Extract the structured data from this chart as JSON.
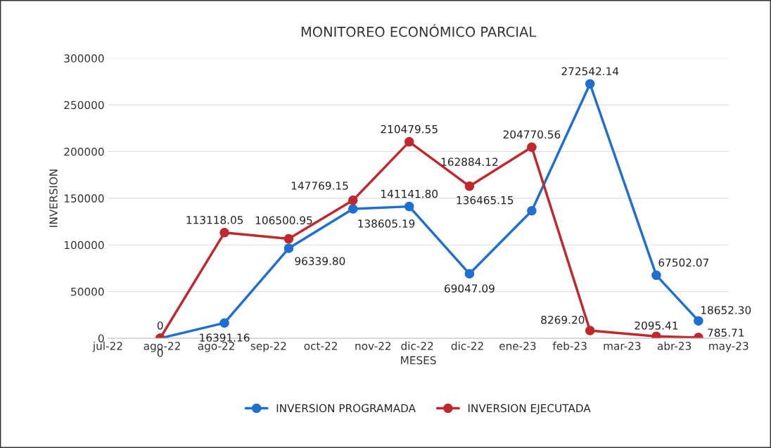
{
  "chart_data": {
    "type": "line",
    "title": "MONITOREO ECONÓMICO PARCIAL",
    "xlabel": "MESES",
    "ylabel": "INVERSION",
    "x": [
      "2022-07-31",
      "2022-09-01",
      "2022-10-03",
      "2022-11-04",
      "2022-12-02",
      "2023-01-01",
      "2023-02-01",
      "2023-03-02",
      "2023-04-04",
      "2023-04-25"
    ],
    "series": [
      {
        "name": "INVERSION PROGRAMADA",
        "color": "#1f6fd1",
        "values": [
          0,
          16391.16,
          96339.8,
          138605.19,
          141141.8,
          69047.09,
          136465.15,
          272542.14,
          67502.07,
          18652.3
        ],
        "value_labels": [
          "0",
          "16391.16",
          "96339.80",
          "138605.19",
          "141141.80",
          "69047.09",
          "136465.15",
          "272542.14",
          "67502.07",
          "18652.30"
        ]
      },
      {
        "name": "INVERSION EJECUTADA",
        "color": "#c0282d",
        "values": [
          0,
          113118.05,
          106500.95,
          147769.15,
          210479.55,
          162884.12,
          204770.56,
          8269.2,
          2095.41,
          785.71
        ],
        "value_labels": [
          "0",
          "113118.05",
          "106500.95",
          "147769.15",
          "210479.55",
          "162884.12",
          "204770.56",
          "8269.20",
          "2095.41",
          "785.71"
        ]
      }
    ],
    "xlim": [
      "2022-07-05",
      "2023-05-10"
    ],
    "xticks": [
      {
        "value": "2022-07-05",
        "label": "jul-22"
      },
      {
        "value": "2022-08-01",
        "label": "ago-22"
      },
      {
        "value": "2022-08-28",
        "label": "ago-22"
      },
      {
        "value": "2022-09-23",
        "label": "sep-22"
      },
      {
        "value": "2022-10-19",
        "label": "oct-22"
      },
      {
        "value": "2022-11-14",
        "label": "nov-22"
      },
      {
        "value": "2022-12-06",
        "label": "dic-22"
      },
      {
        "value": "2022-12-31",
        "label": "dic-22"
      },
      {
        "value": "2023-01-25",
        "label": "ene-23"
      },
      {
        "value": "2023-02-20",
        "label": "feb-23"
      },
      {
        "value": "2023-03-18",
        "label": "mar-23"
      },
      {
        "value": "2023-04-13",
        "label": "abr-23"
      },
      {
        "value": "2023-05-10",
        "label": "may-23"
      }
    ],
    "ylim": [
      0,
      300000
    ],
    "yticks": [
      0,
      50000,
      100000,
      150000,
      200000,
      250000,
      300000
    ],
    "grid": "y",
    "legend": "bottom",
    "marker": "circle",
    "line_style": "solid"
  }
}
